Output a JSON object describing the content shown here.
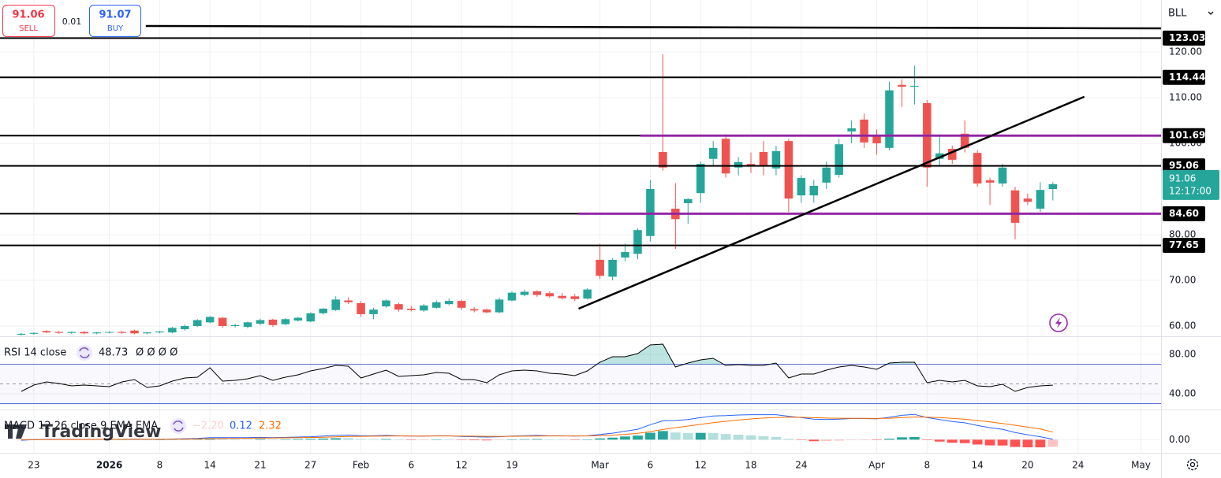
{
  "trade": {
    "sell_price": "91.06",
    "sell": "SELL",
    "spread": "0.01",
    "buy_price": "91.07",
    "buy": "BUY"
  },
  "symbol": "BLL",
  "watermark": "TradingView",
  "chart_data": [
    {
      "type": "candlestick",
      "up_color": "#26a69a",
      "down_color": "#ef5350",
      "open": [
        58.1,
        58.3,
        58.9,
        58.7,
        58.5,
        58.7,
        58.4,
        58.6,
        58.7,
        59.0,
        58.4,
        58.6,
        58.6,
        59.3,
        60.0,
        60.8,
        61.8,
        60.0,
        59.8,
        60.5,
        61.4,
        60.4,
        61.2,
        61.0,
        62.8,
        63.5,
        65.6,
        65.0,
        62.6,
        64.3,
        64.8,
        63.8,
        63.4,
        64.0,
        64.8,
        65.5,
        63.7,
        63.6,
        63.0,
        65.6,
        66.8,
        67.6,
        67.2,
        66.6,
        66.5,
        66.0,
        74.5,
        70.8,
        75.0,
        75.8,
        79.7,
        98.1,
        85.7,
        86.9,
        89.1,
        96.6,
        101.0,
        94.7,
        95.5,
        98.1,
        94.5,
        100.5,
        88.6,
        88.6,
        91.4,
        93.1,
        102.6,
        105.2,
        101.7,
        99.0,
        112.8,
        112.4,
        108.8,
        96.6,
        98.8,
        102.1,
        97.9,
        91.9,
        91.2,
        89.7,
        87.9,
        85.7,
        90.0
      ],
      "high": [
        58.5,
        58.6,
        59.1,
        58.9,
        58.8,
        58.9,
        58.7,
        58.8,
        58.9,
        59.2,
        58.7,
        58.9,
        59.8,
        60.3,
        61.5,
        62.2,
        62.0,
        60.5,
        61.0,
        61.6,
        61.6,
        61.7,
        62.0,
        63.0,
        64.0,
        66.5,
        66.3,
        65.5,
        64.0,
        65.8,
        65.1,
        64.4,
        64.8,
        65.6,
        66.0,
        65.8,
        64.2,
        63.8,
        66.2,
        67.6,
        68.0,
        67.8,
        67.6,
        67.2,
        67.0,
        68.3,
        78.0,
        74.8,
        78.0,
        81.4,
        92.0,
        119.5,
        91.3,
        88.0,
        96.0,
        100.5,
        102.0,
        97.0,
        98.0,
        100.5,
        99.5,
        101.0,
        93.0,
        92.0,
        96.0,
        101.0,
        105.0,
        106.5,
        103.0,
        113.5,
        114.0,
        117.0,
        109.5,
        102.0,
        99.5,
        105.0,
        98.5,
        92.5,
        95.5,
        90.5,
        89.0,
        91.5,
        91.5
      ],
      "low": [
        57.9,
        58.1,
        58.4,
        58.3,
        58.3,
        58.2,
        58.2,
        58.4,
        58.3,
        58.2,
        58.2,
        58.4,
        58.4,
        59.0,
        59.8,
        60.6,
        59.6,
        59.7,
        59.5,
        60.2,
        59.8,
        60.2,
        61.0,
        60.8,
        62.5,
        63.3,
        64.8,
        62.0,
        61.5,
        64.0,
        63.2,
        63.2,
        63.1,
        63.8,
        64.5,
        63.5,
        63.0,
        62.8,
        62.8,
        65.4,
        66.5,
        66.4,
        66.2,
        65.8,
        65.5,
        65.8,
        70.3,
        70.0,
        74.2,
        74.6,
        78.5,
        94.0,
        76.9,
        82.4,
        87.0,
        95.0,
        92.5,
        93.0,
        93.5,
        93.0,
        93.0,
        85.0,
        87.0,
        87.0,
        90.0,
        92.5,
        100.0,
        99.0,
        97.5,
        98.5,
        108.0,
        108.5,
        90.5,
        95.0,
        95.5,
        98.0,
        90.5,
        86.5,
        90.5,
        79.0,
        86.5,
        85.0,
        87.5
      ],
      "close": [
        58.3,
        58.5,
        58.6,
        58.5,
        58.7,
        58.4,
        58.6,
        58.7,
        58.5,
        58.4,
        58.6,
        58.8,
        59.6,
        60.0,
        61.3,
        62.0,
        60.0,
        60.2,
        60.8,
        61.3,
        60.2,
        61.5,
        61.8,
        62.8,
        63.8,
        65.8,
        65.2,
        62.6,
        63.6,
        65.6,
        63.6,
        63.5,
        64.5,
        65.2,
        65.5,
        64.0,
        63.4,
        63.0,
        65.8,
        67.3,
        67.5,
        66.8,
        66.5,
        66.1,
        65.9,
        68.0,
        71.0,
        74.5,
        76.2,
        81.0,
        90.0,
        94.7,
        83.4,
        87.8,
        95.5,
        99.0,
        93.4,
        95.9,
        95.2,
        95.2,
        98.3,
        87.9,
        92.4,
        90.7,
        94.7,
        99.8,
        103.3,
        100.2,
        100.0,
        111.6,
        112.4,
        112.6,
        94.7,
        97.8,
        96.4,
        99.0,
        91.2,
        91.4,
        94.7,
        82.6,
        87.2,
        89.8,
        91.06
      ],
      "countdown": "12:17:00",
      "xlim": [
        -1.69,
        90.6
      ],
      "xticks": [
        {
          "value": 1,
          "label": "23"
        },
        {
          "value": 7,
          "label": "2026"
        },
        {
          "value": 11,
          "label": "8"
        },
        {
          "value": 15,
          "label": "14"
        },
        {
          "value": 19,
          "label": "21"
        },
        {
          "value": 23,
          "label": "27"
        },
        {
          "value": 27,
          "label": "Feb"
        },
        {
          "value": 31,
          "label": "6"
        },
        {
          "value": 35,
          "label": "12"
        },
        {
          "value": 39,
          "label": "19"
        },
        {
          "value": 46,
          "label": "Mar"
        },
        {
          "value": 50,
          "label": "6"
        },
        {
          "value": 54,
          "label": "12"
        },
        {
          "value": 58,
          "label": "18"
        },
        {
          "value": 62,
          "label": "24"
        },
        {
          "value": 68,
          "label": "Apr"
        },
        {
          "value": 72,
          "label": "8"
        },
        {
          "value": 76,
          "label": "14"
        },
        {
          "value": 80,
          "label": "20"
        },
        {
          "value": 84,
          "label": "24"
        },
        {
          "value": 89,
          "label": "May"
        }
      ],
      "ylim": [
        57.76,
        131.38
      ],
      "yticks": [
        {
          "value": 60,
          "label": "60.00"
        },
        {
          "value": 70,
          "label": "70.00"
        },
        {
          "value": 80,
          "label": "80.00"
        },
        {
          "value": 100,
          "label": "100.00"
        },
        {
          "value": 110,
          "label": "110.00"
        },
        {
          "value": 120,
          "label": "120.00"
        }
      ],
      "grid": true,
      "level_color": "#000000",
      "levels": [
        123.03,
        114.44,
        101.69,
        95.06,
        {
          "value": 84.6,
          "label": "84.60"
        },
        77.65
      ],
      "highlights": [
        {
          "value": 101.69,
          "x_from": 49.2,
          "color": "#9c27b0"
        },
        {
          "value": 84.6,
          "x_from": 44.3,
          "color": "#9c27b0"
        }
      ],
      "trendlines": [
        {
          "x": [
            44.3,
            84.5
          ],
          "y": [
            63.8,
            110.2
          ],
          "color": "#000000"
        },
        {
          "x": [
            9.9,
            90.6
          ],
          "y": [
            125.69,
            125.17
          ],
          "color": "#000000"
        }
      ]
    },
    {
      "type": "line",
      "title": "RSI 14 close",
      "extra": "Ø Ø Ø Ø",
      "color": "#000000",
      "band_color": "#5b6fd6",
      "fill_color": "#26a69a",
      "values": [
        42.4,
        48.8,
        52,
        50.4,
        48,
        48.8,
        48,
        47.2,
        52,
        54.4,
        46.4,
        48,
        52.8,
        56,
        56.8,
        66.4,
        52.8,
        53.6,
        55.2,
        58.4,
        53.6,
        56.8,
        59.2,
        63.2,
        65.6,
        68.8,
        68,
        56,
        60,
        64,
        57.6,
        58.4,
        59.2,
        61.6,
        60.8,
        54.4,
        54.4,
        51.2,
        59.2,
        63.2,
        64,
        63.2,
        60.8,
        60,
        58.4,
        63.2,
        72,
        77.6,
        77.6,
        80.8,
        89.6,
        90.4,
        67.2,
        71.2,
        74.4,
        76,
        68.8,
        69.6,
        68.8,
        68.8,
        71.2,
        56,
        60,
        60,
        64,
        67.2,
        68.8,
        67.2,
        64.8,
        71.2,
        72,
        72,
        51.2,
        53.6,
        52,
        53.6,
        48,
        47.2,
        49.6,
        42.4,
        46.4,
        48,
        48.73
      ],
      "ylim": [
        24,
        97.6
      ],
      "yticks": [
        {
          "value": 40,
          "label": "40.00"
        },
        {
          "value": 80,
          "label": "80.00"
        }
      ],
      "bands": [
        70,
        30
      ],
      "midline": 50
    },
    {
      "type": "macd",
      "title": "MACD 12 26 close 9 EMA EMA",
      "series": [
        {
          "name": "Histogram",
          "color": "#26a69a",
          "down_color": "#ff5252",
          "legend_label": "−2.20",
          "values": [
            -0.2,
            0,
            0.08,
            0.06,
            0.05,
            0.04,
            0.03,
            0.02,
            0.02,
            0.1,
            0,
            0,
            0.08,
            0.14,
            0.19,
            0.31,
            0.25,
            0.2,
            0.16,
            0.21,
            0.09,
            0.15,
            0.2,
            0.24,
            0.35,
            0.44,
            0.43,
            0.18,
            0.14,
            0.19,
            0.07,
            -0.02,
            -0.02,
            0.06,
            0.05,
            -0.12,
            -0.18,
            -0.22,
            -0.1,
            0.08,
            0.14,
            0.19,
            0.07,
            0.06,
            -0.03,
            0.06,
            0.37,
            0.62,
            0.98,
            1.26,
            2.13,
            2.66,
            2.21,
            2.01,
            2.09,
            2.07,
            1.74,
            1.55,
            1.32,
            1.06,
            0.85,
            0.28,
            -0.1,
            -0.48,
            -0.46,
            -0.29,
            -0.07,
            -0.06,
            -0.13,
            0.3,
            0.72,
            0.82,
            -0.14,
            -0.59,
            -0.95,
            -1.08,
            -1.5,
            -1.76,
            -1.81,
            -2.25,
            -2.36,
            -2.37,
            -2.2
          ]
        },
        {
          "name": "MACD",
          "color": "#2962ff",
          "values": [
            -0.2,
            0,
            0.1,
            0.1,
            0.1,
            0.1,
            0.1,
            0.1,
            0.1,
            0.2,
            0.1,
            0.1,
            0.2,
            0.3,
            0.4,
            0.6,
            0.6,
            0.6,
            0.6,
            0.7,
            0.6,
            0.7,
            0.8,
            0.9,
            1.1,
            1.3,
            1.4,
            1.2,
            1.2,
            1.3,
            1.2,
            1.1,
            1.1,
            1.2,
            1.2,
            1.0,
            0.9,
            0.8,
            0.9,
            1.1,
            1.2,
            1.3,
            1.2,
            1.2,
            1.1,
            1.2,
            1.6,
            2.0,
            2.6,
            3.2,
            4.6,
            5.8,
            5.9,
            6.2,
            6.8,
            7.3,
            7.4,
            7.6,
            7.7,
            7.7,
            7.7,
            7.2,
            6.8,
            6.3,
            6.2,
            6.3,
            6.5,
            6.5,
            6.4,
            6.9,
            7.5,
            7.8,
            6.8,
            6.2,
            5.6,
            5.2,
            4.4,
            3.7,
            3.2,
            2.2,
            1.5,
            0.9,
            0.12
          ]
        },
        {
          "name": "Signal",
          "color": "#ff6d00",
          "values": [
            0,
            0,
            0.02,
            0.04,
            0.05,
            0.06,
            0.07,
            0.08,
            0.08,
            0.1,
            0.1,
            0.1,
            0.12,
            0.16,
            0.21,
            0.29,
            0.35,
            0.4,
            0.44,
            0.49,
            0.51,
            0.55,
            0.6,
            0.66,
            0.75,
            0.86,
            0.97,
            1.02,
            1.06,
            1.11,
            1.13,
            1.12,
            1.12,
            1.14,
            1.15,
            1.12,
            1.08,
            1.02,
            1.0,
            1.02,
            1.06,
            1.11,
            1.13,
            1.14,
            1.13,
            1.14,
            1.23,
            1.38,
            1.62,
            1.94,
            2.47,
            3.14,
            3.69,
            4.19,
            4.71,
            5.23,
            5.66,
            6.05,
            6.38,
            6.64,
            6.85,
            6.92,
            6.9,
            6.78,
            6.66,
            6.59,
            6.57,
            6.56,
            6.53,
            6.6,
            6.78,
            6.98,
            6.94,
            6.79,
            6.55,
            6.28,
            5.9,
            5.46,
            5.01,
            4.45,
            3.86,
            3.27,
            2.32
          ]
        }
      ],
      "ylim": [
        -4.05,
        9.05
      ],
      "yticks": [
        {
          "value": 0,
          "label": "0.00"
        }
      ]
    }
  ]
}
